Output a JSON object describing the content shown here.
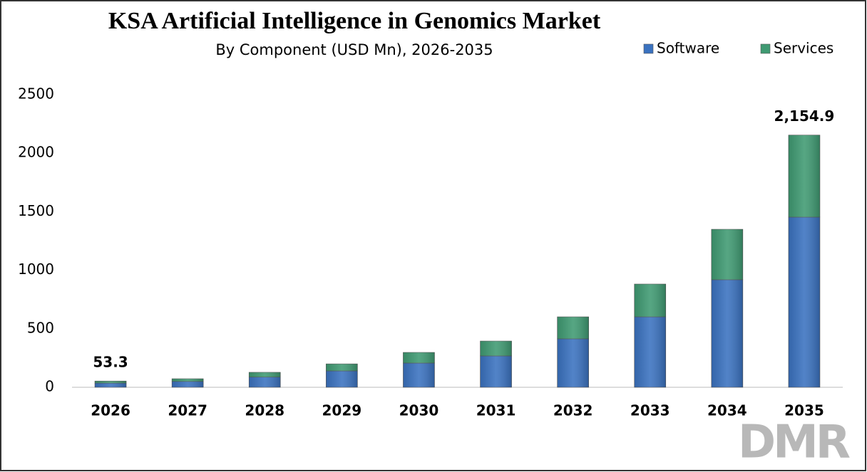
{
  "chart_data": {
    "type": "stacked_bar",
    "title": "KSA Artificial Intelligence in Genomics Market",
    "subtitle": "By Component (USD Mn), 2026-2035",
    "categories": [
      "2026",
      "2027",
      "2028",
      "2029",
      "2030",
      "2031",
      "2032",
      "2033",
      "2034",
      "2035"
    ],
    "series": [
      {
        "name": "Software",
        "color": "#3a72c0",
        "values": [
          36,
          50,
          87,
          140,
          207,
          268,
          414,
          602,
          919,
          1454
        ]
      },
      {
        "name": "Services",
        "color": "#3f9a72",
        "values": [
          17.3,
          23,
          41,
          60,
          91,
          127,
          188,
          280,
          431,
          700.9
        ]
      }
    ],
    "total_labels": [
      {
        "category": "2026",
        "value": 53.3,
        "label": "53.3"
      },
      {
        "category": "2035",
        "value": 2154.9,
        "label": "2,154.9"
      }
    ],
    "ylim": [
      0,
      2500
    ],
    "yticks": [
      0,
      500,
      1000,
      1500,
      2000,
      2500
    ],
    "grid": false,
    "legend": "top-right",
    "watermark": "DMR"
  }
}
